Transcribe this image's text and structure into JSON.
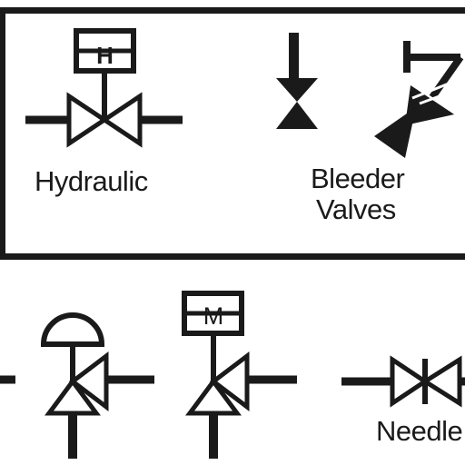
{
  "labels": {
    "hydraulic": "Hydraulic",
    "bleeder_line1": "Bleeder",
    "bleeder_line2": "Valves",
    "needle": "Needle"
  },
  "symbols": {
    "hydraulic_actuator_letter": "H",
    "motor_actuator_letter": "M"
  },
  "colors": {
    "ink": "#1a1a1a",
    "background": "#ffffff"
  }
}
